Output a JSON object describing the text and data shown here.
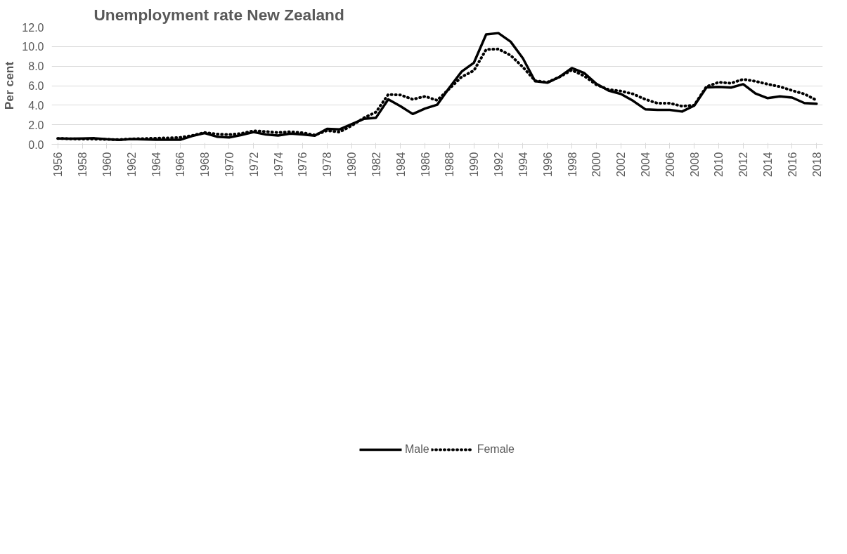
{
  "chart_data": {
    "type": "line",
    "title": "Unemployment rate  New Zealand",
    "ylabel": "Per cent",
    "x": [
      1956,
      1957,
      1958,
      1959,
      1960,
      1961,
      1962,
      1963,
      1964,
      1965,
      1966,
      1967,
      1968,
      1969,
      1970,
      1971,
      1972,
      1973,
      1974,
      1975,
      1976,
      1977,
      1978,
      1979,
      1980,
      1981,
      1982,
      1983,
      1984,
      1985,
      1986,
      1987,
      1988,
      1989,
      1990,
      1991,
      1992,
      1993,
      1994,
      1995,
      1996,
      1997,
      1998,
      1999,
      2000,
      2001,
      2002,
      2003,
      2004,
      2005,
      2006,
      2007,
      2008,
      2009,
      2010,
      2011,
      2012,
      2013,
      2014,
      2015,
      2016,
      2017,
      2018
    ],
    "series": [
      {
        "name": "Male",
        "color": "#000000",
        "line_style": "solid",
        "values": [
          0.6,
          0.58,
          0.6,
          0.62,
          0.52,
          0.45,
          0.53,
          0.5,
          0.47,
          0.46,
          0.46,
          0.85,
          1.15,
          0.78,
          0.7,
          0.95,
          1.25,
          1.0,
          0.9,
          1.1,
          1.0,
          0.88,
          1.58,
          1.52,
          2.05,
          2.6,
          2.72,
          4.6,
          3.9,
          3.1,
          3.65,
          4.05,
          5.8,
          7.45,
          8.35,
          11.25,
          11.38,
          10.5,
          8.8,
          6.45,
          6.3,
          6.9,
          7.8,
          7.3,
          6.2,
          5.5,
          5.15,
          4.45,
          3.58,
          3.52,
          3.52,
          3.35,
          3.95,
          5.82,
          5.87,
          5.8,
          6.15,
          5.2,
          4.72,
          4.9,
          4.78,
          4.22,
          4.15
        ]
      },
      {
        "name": "Female",
        "color": "#000000",
        "line_style": "dotted",
        "values": [
          0.6,
          0.56,
          0.53,
          0.53,
          0.5,
          0.48,
          0.55,
          0.58,
          0.62,
          0.65,
          0.7,
          0.9,
          1.2,
          1.05,
          1.0,
          1.1,
          1.38,
          1.3,
          1.2,
          1.28,
          1.18,
          0.95,
          1.4,
          1.25,
          1.9,
          2.7,
          3.3,
          5.1,
          5.05,
          4.6,
          4.9,
          4.5,
          5.7,
          6.9,
          7.55,
          9.7,
          9.75,
          9.1,
          7.9,
          6.5,
          6.35,
          6.9,
          7.6,
          7.0,
          6.1,
          5.6,
          5.45,
          5.15,
          4.6,
          4.2,
          4.2,
          3.9,
          4.0,
          5.9,
          6.35,
          6.25,
          6.65,
          6.45,
          6.15,
          5.9,
          5.5,
          5.15,
          4.5
        ]
      }
    ],
    "xlim": [
      1955.5,
      2018.5
    ],
    "xticks": [
      1956,
      1958,
      1960,
      1962,
      1964,
      1966,
      1968,
      1970,
      1972,
      1974,
      1976,
      1978,
      1980,
      1982,
      1984,
      1986,
      1988,
      1990,
      1992,
      1994,
      1996,
      1998,
      2000,
      2002,
      2004,
      2006,
      2008,
      2010,
      2012,
      2014,
      2016,
      2018
    ],
    "ylim": [
      0,
      12
    ],
    "yticks": [
      {
        "value": 0,
        "label": "0.0"
      },
      {
        "value": 2,
        "label": "2.0"
      },
      {
        "value": 4,
        "label": "4.0"
      },
      {
        "value": 6,
        "label": "6.0"
      },
      {
        "value": 8,
        "label": "8.0"
      },
      {
        "value": 10,
        "label": "10.0"
      },
      {
        "value": 12,
        "label": "12.0"
      }
    ],
    "grid": "y",
    "legend": "bottom"
  }
}
